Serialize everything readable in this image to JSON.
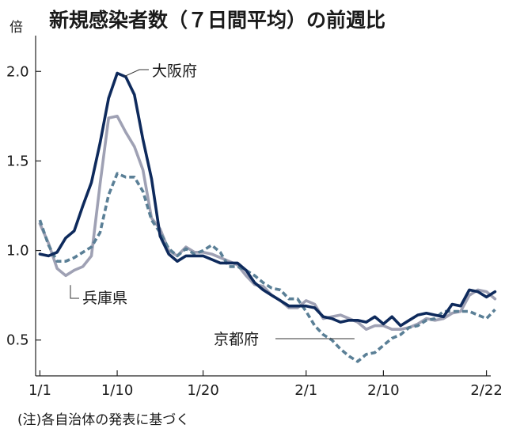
{
  "chart_data": {
    "type": "line",
    "title": "新規感染者数（７日間平均）の前週比",
    "unit": "倍",
    "note": "(注)各自治体の発表に基づく",
    "ylim": [
      0.3,
      2.2
    ],
    "yticks": [
      {
        "value": 0.5,
        "label": "0.5"
      },
      {
        "value": 1.0,
        "label": "1.0"
      },
      {
        "value": 1.5,
        "label": "1.5"
      },
      {
        "value": 2.0,
        "label": "2.0"
      }
    ],
    "xlim": [
      0.5,
      53.5
    ],
    "xticks": [
      {
        "day": 1,
        "label": "1/1"
      },
      {
        "day": 10,
        "label": "1/10"
      },
      {
        "day": 20,
        "label": "1/20"
      },
      {
        "day": 32,
        "label": "2/1"
      },
      {
        "day": 41,
        "label": "2/10"
      },
      {
        "day": 53,
        "label": "2/22"
      }
    ],
    "grid": false,
    "legend": "direct-labels",
    "series": [
      {
        "name": "大阪府",
        "color": "#0e2a5c",
        "style": "solid",
        "start": "1/1",
        "values": [
          0.98,
          0.97,
          0.99,
          1.07,
          1.11,
          1.25,
          1.38,
          1.6,
          1.85,
          1.99,
          1.97,
          1.87,
          1.62,
          1.4,
          1.08,
          0.98,
          0.94,
          0.97,
          0.97,
          0.97,
          0.95,
          0.93,
          0.93,
          0.93,
          0.89,
          0.82,
          0.78,
          0.75,
          0.72,
          0.69,
          0.69,
          0.69,
          0.68,
          0.63,
          0.62,
          0.6,
          0.61,
          0.61,
          0.6,
          0.63,
          0.59,
          0.63,
          0.58,
          0.61,
          0.64,
          0.65,
          0.64,
          0.63,
          0.7,
          0.69,
          0.78,
          0.77,
          0.74,
          0.77
        ]
      },
      {
        "name": "兵庫県",
        "color": "#9fa1b4",
        "style": "solid",
        "start": "1/1",
        "values": [
          1.15,
          1.04,
          0.9,
          0.86,
          0.89,
          0.91,
          0.97,
          1.37,
          1.74,
          1.75,
          1.66,
          1.58,
          1.45,
          1.18,
          1.12,
          1.0,
          0.97,
          1.02,
          0.99,
          0.99,
          0.98,
          0.96,
          0.94,
          0.92,
          0.86,
          0.81,
          0.8,
          0.75,
          0.72,
          0.68,
          0.68,
          0.72,
          0.7,
          0.62,
          0.63,
          0.64,
          0.62,
          0.6,
          0.56,
          0.58,
          0.58,
          0.56,
          0.56,
          0.57,
          0.59,
          0.62,
          0.61,
          0.62,
          0.65,
          0.66,
          0.75,
          0.78,
          0.77,
          0.73
        ]
      },
      {
        "name": "京都府",
        "color": "#5a7f96",
        "style": "dashed",
        "start": "1/1",
        "values": [
          1.17,
          1.03,
          0.94,
          0.94,
          0.96,
          0.99,
          1.02,
          1.1,
          1.31,
          1.43,
          1.41,
          1.41,
          1.33,
          1.17,
          1.1,
          1.01,
          0.97,
          1.01,
          0.98,
          1.0,
          1.03,
          0.99,
          0.91,
          0.91,
          0.89,
          0.86,
          0.82,
          0.79,
          0.78,
          0.73,
          0.73,
          0.66,
          0.58,
          0.53,
          0.5,
          0.45,
          0.41,
          0.38,
          0.42,
          0.43,
          0.47,
          0.51,
          0.53,
          0.57,
          0.58,
          0.61,
          0.62,
          0.66,
          0.66,
          0.66,
          0.66,
          0.64,
          0.62,
          0.67
        ]
      }
    ]
  }
}
